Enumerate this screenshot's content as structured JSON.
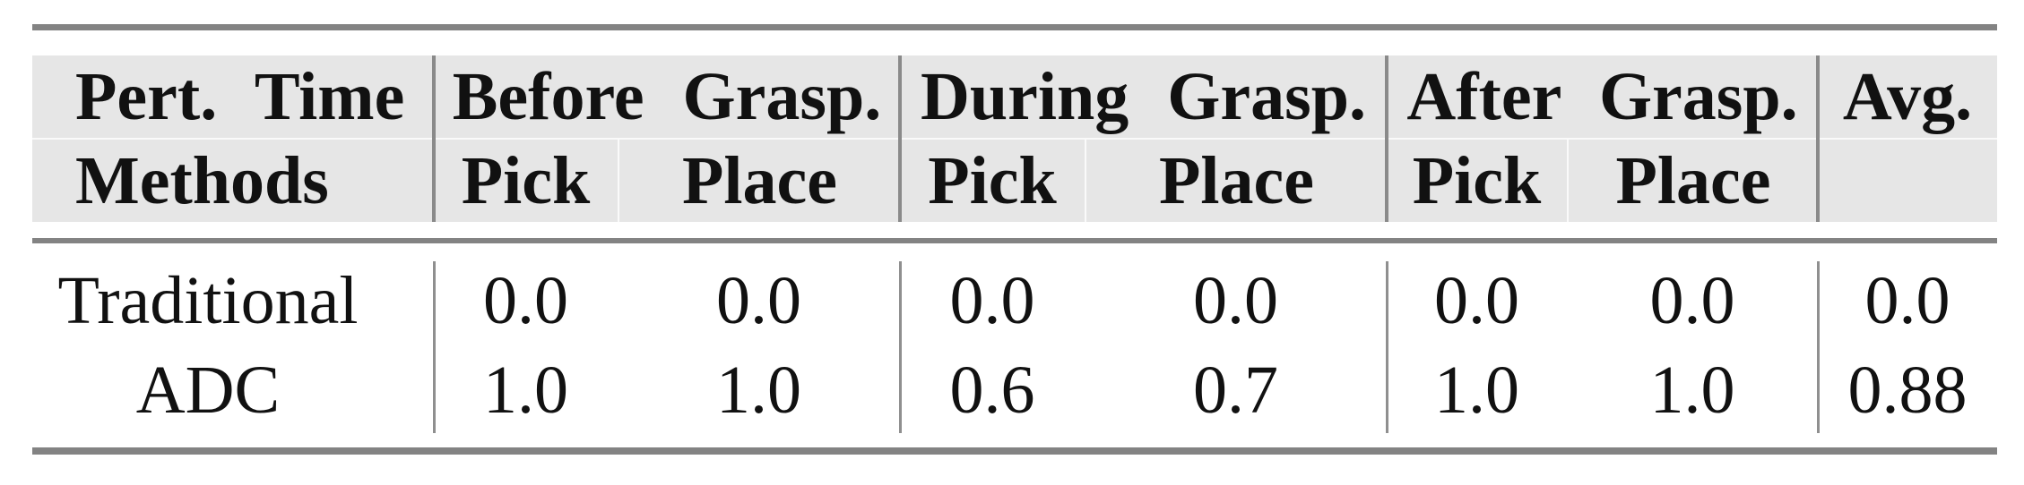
{
  "styles": {
    "header_bg": "#e6e6e6",
    "rule_color": "#838383",
    "divider_color": "#8a8a8a",
    "text_color": "#111111"
  },
  "table": {
    "corner": {
      "line1": "Pert. Time",
      "line2": "Methods"
    },
    "groups": [
      {
        "label": "Before Grasp.",
        "sub": [
          "Pick",
          "Place"
        ]
      },
      {
        "label": "During Grasp.",
        "sub": [
          "Pick",
          "Place"
        ]
      },
      {
        "label": "After Grasp.",
        "sub": [
          "Pick",
          "Place"
        ]
      }
    ],
    "avg_label": "Avg.",
    "rows": [
      {
        "method": "Traditional",
        "values": [
          "0.0",
          "0.0",
          "0.0",
          "0.0",
          "0.0",
          "0.0",
          "0.0"
        ]
      },
      {
        "method": "ADC",
        "values": [
          "1.0",
          "1.0",
          "0.6",
          "0.7",
          "1.0",
          "1.0",
          "0.88"
        ]
      }
    ]
  },
  "chart_data": {
    "type": "table",
    "title": "",
    "columns": [
      "Methods",
      "Before Grasp. Pick",
      "Before Grasp. Place",
      "During Grasp. Pick",
      "During Grasp. Place",
      "After Grasp. Pick",
      "After Grasp. Place",
      "Avg."
    ],
    "rows": [
      [
        "Traditional",
        0.0,
        0.0,
        0.0,
        0.0,
        0.0,
        0.0,
        0.0
      ],
      [
        "ADC",
        1.0,
        1.0,
        0.6,
        0.7,
        1.0,
        1.0,
        0.88
      ]
    ]
  }
}
